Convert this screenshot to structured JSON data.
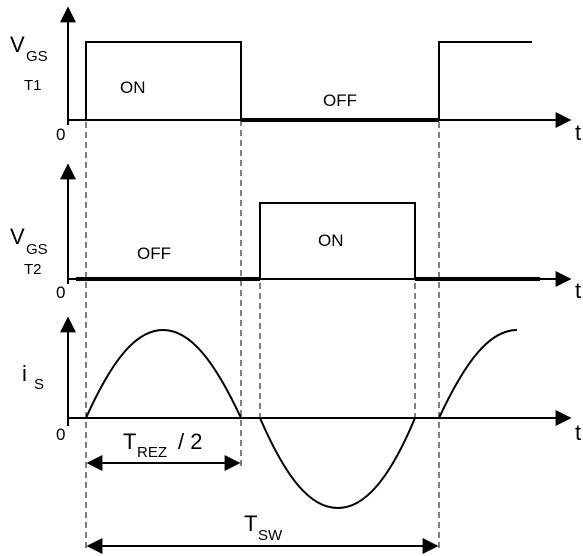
{
  "panel_t1": {
    "signal_main": "V",
    "signal_sub": "GS",
    "signal_tag": "T1",
    "origin": "0",
    "axis_label": "t",
    "state_high": "ON",
    "state_low": "OFF"
  },
  "panel_t2": {
    "signal_main": "V",
    "signal_sub": "GS",
    "signal_tag": "T2",
    "origin": "0",
    "axis_label": "t",
    "state_low": "OFF",
    "state_high": "ON"
  },
  "panel_current": {
    "signal_main": "i",
    "signal_sub": "S",
    "origin": "0",
    "axis_label": "t"
  },
  "dimensions": {
    "half_period_main": "T",
    "half_period_sub": "REZ",
    "half_period_suffix": "/ 2",
    "switch_period_main": "T",
    "switch_period_sub": "SW"
  }
}
